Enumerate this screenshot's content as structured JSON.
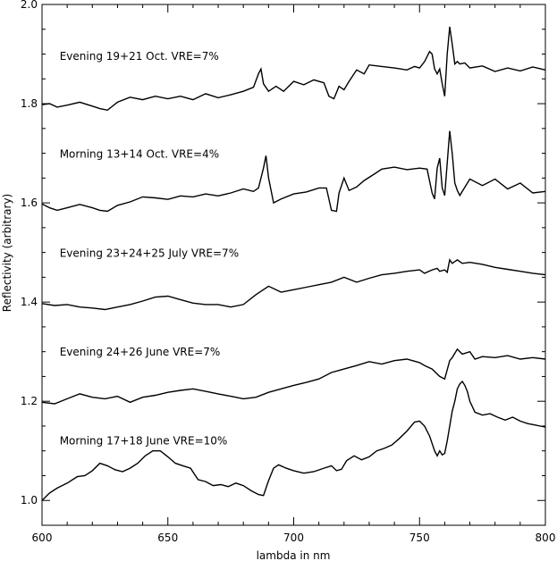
{
  "chart_data": {
    "type": "line",
    "xlabel": "lambda in nm",
    "ylabel": "Reflectivity (arbitrary)",
    "xlim": [
      600,
      800
    ],
    "ylim": [
      0.95,
      2.0
    ],
    "xticks": [
      600,
      650,
      700,
      750,
      800
    ],
    "yticks": [
      1.0,
      1.2,
      1.4,
      1.6,
      1.8,
      2.0
    ],
    "xtick_labels": [
      "600",
      "650",
      "700",
      "750",
      "800"
    ],
    "ytick_labels": [
      "1.0",
      "1.2",
      "1.4",
      "1.6",
      "1.8",
      "2.0"
    ],
    "grid": false,
    "annotations": [
      {
        "text": "Evening 19+21 Oct. VRE=7%",
        "x": 607,
        "y": 1.888
      },
      {
        "text": "Morning 13+14 Oct. VRE=4%",
        "x": 607,
        "y": 1.691
      },
      {
        "text": "Evening 23+24+25 July VRE=7%",
        "x": 607,
        "y": 1.491
      },
      {
        "text": "Evening 24+26 June VRE=7%",
        "x": 607,
        "y": 1.292
      },
      {
        "text": "Morning 17+18 June VRE=10%",
        "x": 607,
        "y": 1.113
      }
    ],
    "series": [
      {
        "x": [
          600,
          603,
          606,
          610,
          615,
          620,
          623,
          626,
          630,
          635,
          640,
          645,
          650,
          655,
          660,
          665,
          670,
          675,
          680,
          684,
          686,
          687,
          688,
          690,
          693,
          696,
          700,
          704,
          708,
          712,
          714,
          716,
          718,
          720,
          722,
          725,
          728,
          730,
          735,
          740,
          745,
          748,
          750,
          752,
          754,
          755,
          756,
          757,
          758,
          759,
          760,
          761,
          762,
          763,
          764,
          765,
          766,
          768,
          770,
          775,
          780,
          785,
          790,
          795,
          800
        ],
        "y": [
          1.798,
          1.8,
          1.793,
          1.797,
          1.803,
          1.795,
          1.79,
          1.787,
          1.803,
          1.813,
          1.808,
          1.815,
          1.81,
          1.815,
          1.808,
          1.82,
          1.812,
          1.818,
          1.825,
          1.833,
          1.86,
          1.87,
          1.84,
          1.825,
          1.835,
          1.825,
          1.845,
          1.838,
          1.848,
          1.842,
          1.815,
          1.81,
          1.835,
          1.828,
          1.845,
          1.868,
          1.86,
          1.878,
          1.875,
          1.872,
          1.868,
          1.875,
          1.872,
          1.885,
          1.905,
          1.9,
          1.87,
          1.86,
          1.87,
          1.84,
          1.815,
          1.9,
          1.955,
          1.92,
          1.88,
          1.885,
          1.88,
          1.882,
          1.872,
          1.876,
          1.865,
          1.872,
          1.866,
          1.874,
          1.868
        ]
      },
      {
        "x": [
          600,
          603,
          606,
          610,
          615,
          620,
          623,
          626,
          630,
          635,
          640,
          645,
          650,
          655,
          660,
          665,
          670,
          675,
          680,
          684,
          686,
          688,
          689,
          690,
          692,
          695,
          700,
          705,
          710,
          713,
          715,
          717,
          718,
          720,
          722,
          725,
          728,
          732,
          735,
          740,
          745,
          750,
          753,
          755,
          756,
          757,
          758,
          759,
          760,
          761,
          762,
          763,
          764,
          765,
          766,
          770,
          775,
          780,
          785,
          790,
          795,
          800
        ],
        "y": [
          1.598,
          1.59,
          1.585,
          1.59,
          1.597,
          1.59,
          1.585,
          1.583,
          1.595,
          1.602,
          1.612,
          1.61,
          1.607,
          1.614,
          1.612,
          1.618,
          1.614,
          1.62,
          1.628,
          1.623,
          1.63,
          1.67,
          1.695,
          1.65,
          1.6,
          1.608,
          1.618,
          1.622,
          1.63,
          1.63,
          1.585,
          1.583,
          1.62,
          1.65,
          1.625,
          1.632,
          1.645,
          1.658,
          1.668,
          1.672,
          1.667,
          1.67,
          1.668,
          1.62,
          1.608,
          1.67,
          1.69,
          1.63,
          1.615,
          1.68,
          1.745,
          1.7,
          1.64,
          1.625,
          1.615,
          1.648,
          1.635,
          1.648,
          1.628,
          1.64,
          1.62,
          1.623
        ]
      },
      {
        "x": [
          600,
          605,
          610,
          615,
          620,
          625,
          630,
          635,
          640,
          645,
          650,
          655,
          660,
          665,
          670,
          675,
          680,
          685,
          690,
          695,
          700,
          705,
          710,
          715,
          720,
          725,
          730,
          735,
          740,
          745,
          750,
          752,
          755,
          757,
          758,
          760,
          761,
          762,
          763,
          765,
          767,
          770,
          775,
          780,
          785,
          790,
          795,
          800
        ],
        "y": [
          1.397,
          1.393,
          1.395,
          1.39,
          1.388,
          1.385,
          1.39,
          1.395,
          1.402,
          1.41,
          1.412,
          1.405,
          1.398,
          1.395,
          1.395,
          1.39,
          1.395,
          1.415,
          1.432,
          1.42,
          1.425,
          1.43,
          1.435,
          1.44,
          1.45,
          1.44,
          1.448,
          1.455,
          1.458,
          1.462,
          1.465,
          1.458,
          1.465,
          1.468,
          1.462,
          1.465,
          1.46,
          1.485,
          1.478,
          1.485,
          1.478,
          1.48,
          1.476,
          1.47,
          1.466,
          1.462,
          1.458,
          1.455
        ]
      },
      {
        "x": [
          600,
          605,
          610,
          615,
          620,
          625,
          630,
          635,
          640,
          645,
          650,
          655,
          660,
          665,
          670,
          675,
          680,
          685,
          690,
          695,
          700,
          705,
          710,
          715,
          720,
          725,
          730,
          735,
          740,
          745,
          750,
          752,
          755,
          758,
          760,
          762,
          763,
          765,
          767,
          770,
          772,
          775,
          780,
          785,
          790,
          795,
          800
        ],
        "y": [
          1.198,
          1.195,
          1.205,
          1.215,
          1.208,
          1.205,
          1.21,
          1.198,
          1.208,
          1.212,
          1.218,
          1.222,
          1.225,
          1.22,
          1.215,
          1.21,
          1.205,
          1.208,
          1.218,
          1.225,
          1.232,
          1.238,
          1.245,
          1.258,
          1.265,
          1.272,
          1.28,
          1.275,
          1.282,
          1.285,
          1.278,
          1.272,
          1.265,
          1.25,
          1.245,
          1.282,
          1.288,
          1.305,
          1.295,
          1.3,
          1.285,
          1.29,
          1.288,
          1.292,
          1.285,
          1.288,
          1.285
        ]
      },
      {
        "x": [
          600,
          603,
          606,
          610,
          614,
          617,
          620,
          623,
          626,
          629,
          632,
          635,
          638,
          641,
          644,
          647,
          650,
          653,
          656,
          659,
          662,
          665,
          668,
          671,
          674,
          677,
          680,
          683,
          686,
          688,
          690,
          692,
          694,
          697,
          700,
          704,
          708,
          712,
          715,
          717,
          719,
          721,
          724,
          727,
          730,
          733,
          736,
          739,
          742,
          745,
          748,
          750,
          752,
          754,
          756,
          757,
          758,
          759,
          760,
          761,
          762,
          763,
          764,
          765,
          766,
          767,
          768,
          769,
          770,
          772,
          775,
          778,
          781,
          784,
          787,
          790,
          793,
          796,
          798,
          800
        ],
        "y": [
          1.0,
          1.015,
          1.025,
          1.035,
          1.048,
          1.05,
          1.06,
          1.075,
          1.07,
          1.062,
          1.058,
          1.065,
          1.075,
          1.09,
          1.1,
          1.1,
          1.088,
          1.075,
          1.07,
          1.065,
          1.042,
          1.038,
          1.03,
          1.032,
          1.028,
          1.035,
          1.03,
          1.02,
          1.012,
          1.01,
          1.04,
          1.065,
          1.072,
          1.065,
          1.06,
          1.055,
          1.058,
          1.065,
          1.07,
          1.06,
          1.063,
          1.08,
          1.09,
          1.082,
          1.088,
          1.1,
          1.105,
          1.112,
          1.125,
          1.14,
          1.158,
          1.16,
          1.15,
          1.13,
          1.1,
          1.09,
          1.1,
          1.092,
          1.095,
          1.12,
          1.15,
          1.18,
          1.2,
          1.225,
          1.235,
          1.24,
          1.232,
          1.22,
          1.2,
          1.178,
          1.172,
          1.175,
          1.168,
          1.162,
          1.168,
          1.16,
          1.155,
          1.152,
          1.15,
          1.148
        ]
      }
    ]
  }
}
